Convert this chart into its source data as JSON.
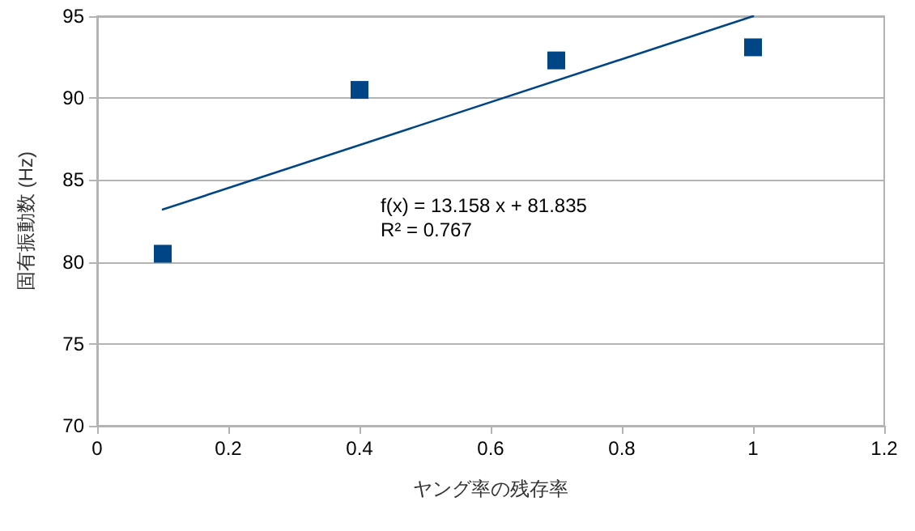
{
  "chart_data": {
    "type": "scatter",
    "xlabel": "ヤング率の残存率",
    "ylabel": "固有振動数 (Hz)",
    "series": [
      {
        "color": "#004586",
        "x": [
          0.1,
          0.4,
          0.7,
          1.0
        ],
        "values": [
          80.5,
          90.5,
          92.3,
          93.1
        ],
        "marker": "square"
      },
      {
        "type": "line",
        "color": "#004586",
        "x": [
          0.1,
          1.0
        ],
        "values": [
          83.2,
          95.0
        ],
        "marker": "none"
      }
    ],
    "xlim": [
      0,
      1.2
    ],
    "xticks": [
      0,
      0.2,
      0.4,
      0.6,
      0.8,
      1,
      1.2
    ],
    "ylim": [
      70,
      95
    ],
    "yticks": [
      70,
      75,
      80,
      85,
      90,
      95
    ],
    "grid": "y",
    "annotations": [
      "f(x) = 13.158 x + 81.835",
      "R² = 0.767"
    ]
  }
}
